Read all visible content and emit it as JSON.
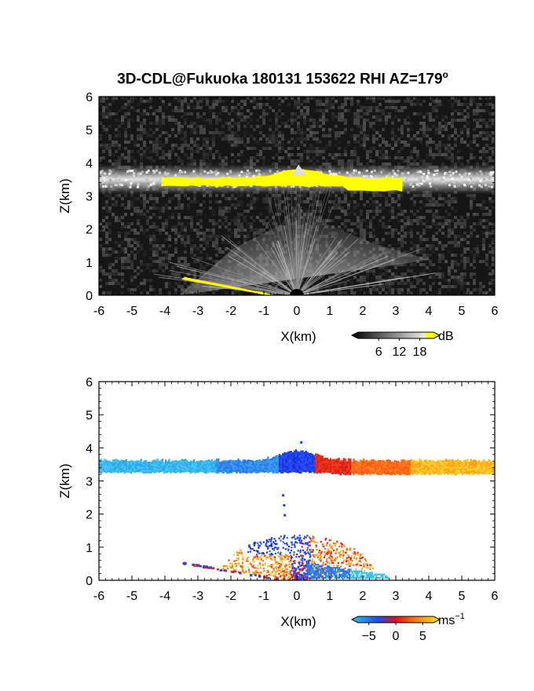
{
  "title": {
    "main": "3D-CDL@Fukuoka 180131 153622 RHI AZ=179",
    "sup": "o"
  },
  "chart_data": [
    {
      "type": "heatmap",
      "title": "3D-CDL@Fukuoka 180131 153622 RHI AZ=179°",
      "xlabel": "X(km)",
      "ylabel": "Z(km)",
      "xlim": [
        -6,
        6
      ],
      "ylim": [
        0,
        6
      ],
      "x_ticks": [
        "-6",
        "-5",
        "-4",
        "-3",
        "-2",
        "-1",
        "0",
        "1",
        "2",
        "3",
        "4",
        "5",
        "6"
      ],
      "y_ticks": [
        "0",
        "1",
        "2",
        "3",
        "4",
        "5",
        "6"
      ],
      "colorbar": {
        "unit": "dB",
        "ticks": [
          "6",
          "12",
          "18"
        ],
        "range": [
          0,
          22
        ]
      },
      "features": {
        "cloud_layer_z": [
          3.2,
          3.8
        ],
        "saturated_band_x": [
          -4.1,
          3.2
        ],
        "lidar_origin_x": 0
      }
    },
    {
      "type": "heatmap",
      "xlabel": "X(km)",
      "ylabel": "Z(km)",
      "xlim": [
        -6,
        6
      ],
      "ylim": [
        0,
        6
      ],
      "x_ticks": [
        "-6",
        "-5",
        "-4",
        "-3",
        "-2",
        "-1",
        "0",
        "1",
        "2",
        "3",
        "4",
        "5",
        "6"
      ],
      "y_ticks": [
        "0",
        "1",
        "2",
        "3",
        "4",
        "5",
        "6"
      ],
      "colorbar": {
        "unit": "ms",
        "unit_sup": "−1",
        "ticks": [
          "−5",
          "0",
          "5"
        ],
        "range": [
          -7,
          7
        ]
      },
      "features": {
        "cloud_layer_z": [
          3.2,
          3.8
        ],
        "negative_side_x": [
          -6,
          0.5
        ],
        "positive_side_x": [
          0.5,
          6
        ]
      }
    }
  ]
}
